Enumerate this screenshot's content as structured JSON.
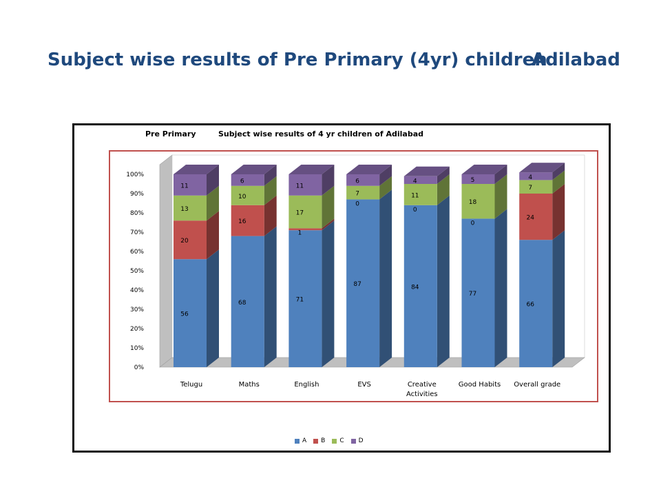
{
  "slide": {
    "title": "Subject wise results of Pre Primary (4yr) children",
    "district": "Adilabad"
  },
  "chart_data": {
    "type": "bar",
    "stacked": true,
    "percent": true,
    "three_d": true,
    "heading_left": "Pre Primary",
    "heading_right": "Subject wise results of 4 yr children of Adilabad",
    "categories": [
      "Telugu",
      "Maths",
      "English",
      "EVS",
      "Creative Activities",
      "Good Habits",
      "Overall grade"
    ],
    "category_lines": [
      [
        "Telugu"
      ],
      [
        "Maths"
      ],
      [
        "English"
      ],
      [
        "EVS"
      ],
      [
        "Creative",
        "Activities"
      ],
      [
        "Good Habits"
      ],
      [
        "Overall grade"
      ]
    ],
    "series": [
      {
        "name": "A",
        "color": "#4f81bd",
        "values": [
          56,
          68,
          71,
          87,
          84,
          77,
          66
        ]
      },
      {
        "name": "B",
        "color": "#c0504d",
        "values": [
          20,
          16,
          1,
          0,
          0,
          0,
          24
        ]
      },
      {
        "name": "C",
        "color": "#9bbb59",
        "values": [
          13,
          10,
          17,
          7,
          11,
          18,
          7
        ]
      },
      {
        "name": "D",
        "color": "#8064a2",
        "values": [
          11,
          6,
          11,
          6,
          4,
          5,
          4
        ]
      }
    ],
    "y_ticks": [
      "0%",
      "10%",
      "20%",
      "30%",
      "40%",
      "50%",
      "60%",
      "70%",
      "80%",
      "90%",
      "100%"
    ],
    "ylim": [
      0,
      100
    ],
    "legend_position": "bottom",
    "grid": false
  }
}
